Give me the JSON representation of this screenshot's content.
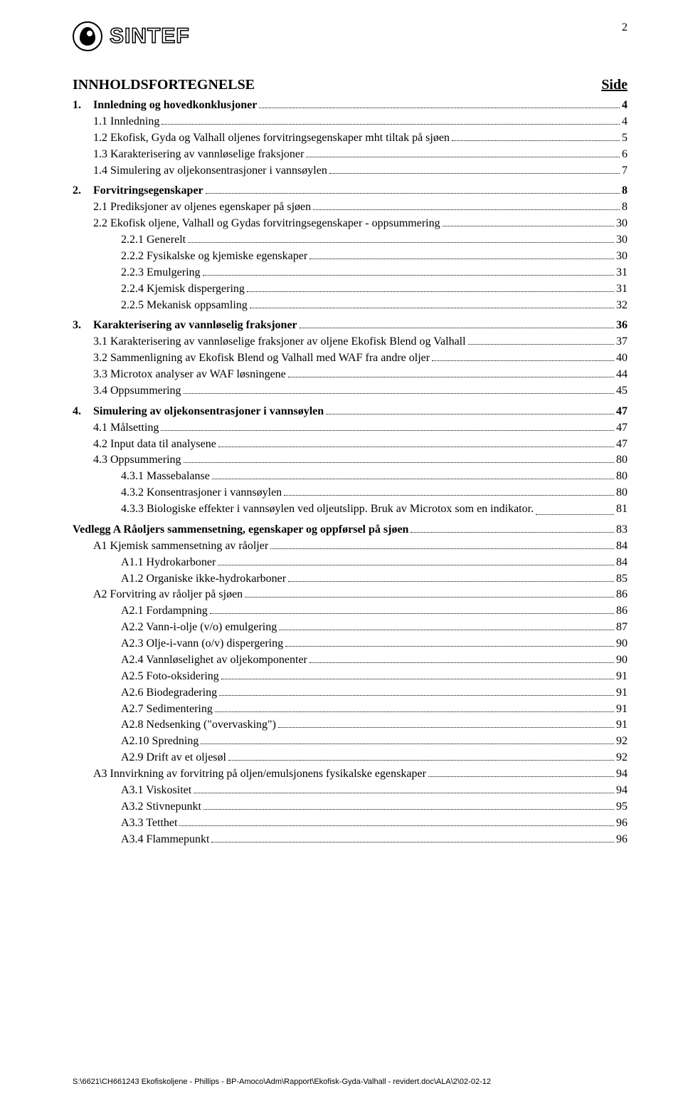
{
  "page_number": "2",
  "logo_text": "SINTEF",
  "doc_title": "INNHOLDSFORTEGNELSE",
  "side_label": "Side",
  "sections": [
    {
      "entries": [
        {
          "level": "l0",
          "num": "1.",
          "text": "Innledning og hovedkonklusjoner",
          "page": "4"
        },
        {
          "level": "l1",
          "text": "1.1  Innledning",
          "page": "4"
        },
        {
          "level": "l1",
          "text": "1.2  Ekofisk, Gyda og Valhall oljenes forvitringsegenskaper mht tiltak på sjøen",
          "page": "5"
        },
        {
          "level": "l1",
          "text": "1.3  Karakterisering av vannløselige fraksjoner",
          "page": "6"
        },
        {
          "level": "l1",
          "text": "1.4  Simulering av oljekonsentrasjoner i vannsøylen",
          "page": "7"
        }
      ]
    },
    {
      "entries": [
        {
          "level": "l0",
          "num": "2.",
          "text": "Forvitringsegenskaper",
          "page": "8"
        },
        {
          "level": "l1",
          "text": "2.1  Prediksjoner av oljenes egenskaper på sjøen",
          "page": "8"
        },
        {
          "level": "l1",
          "text": "2.2  Ekofisk oljene, Valhall og Gydas forvitringsegenskaper  - oppsummering",
          "page": "30"
        },
        {
          "level": "l2",
          "text": "2.2.1   Generelt",
          "page": "30"
        },
        {
          "level": "l2",
          "text": "2.2.2   Fysikalske og kjemiske egenskaper",
          "page": "30"
        },
        {
          "level": "l2",
          "text": "2.2.3   Emulgering",
          "page": "31"
        },
        {
          "level": "l2",
          "text": "2.2.4   Kjemisk dispergering",
          "page": "31"
        },
        {
          "level": "l2",
          "text": "2.2.5   Mekanisk oppsamling",
          "page": "32"
        }
      ]
    },
    {
      "entries": [
        {
          "level": "l0",
          "num": "3.",
          "text": "Karakterisering av vannløselig fraksjoner",
          "page": "36"
        },
        {
          "level": "l1",
          "text": "3.1  Karakterisering av vannløselige fraksjoner av oljene Ekofisk Blend og Valhall",
          "page": "37"
        },
        {
          "level": "l1",
          "text": "3.2  Sammenligning av  Ekofisk Blend og Valhall med WAF fra andre oljer",
          "page": "40"
        },
        {
          "level": "l1",
          "text": "3.3  Microtox analyser av WAF løsningene",
          "page": "44"
        },
        {
          "level": "l1",
          "text": "3.4  Oppsummering",
          "page": "45"
        }
      ]
    },
    {
      "entries": [
        {
          "level": "l0",
          "num": "4.",
          "text": "Simulering av oljekonsentrasjoner i vannsøylen",
          "page": "47"
        },
        {
          "level": "l1",
          "text": "4.1  Målsetting",
          "page": "47"
        },
        {
          "level": "l1",
          "text": "4.2  Input data til analysene",
          "page": "47"
        },
        {
          "level": "l1",
          "text": "4.3  Oppsummering",
          "page": "80"
        },
        {
          "level": "l2",
          "text": "4.3.1   Massebalanse",
          "page": "80"
        },
        {
          "level": "l2",
          "text": "4.3.2   Konsentrasjoner i vannsøylen",
          "page": "80"
        },
        {
          "level": "l1wrap",
          "text": "4.3.3   Biologiske effekter i vannsøylen ved oljeutslipp. Bruk av Microtox som en indikator.",
          "page": "81"
        }
      ]
    },
    {
      "entries": [
        {
          "level": "l0nonum",
          "text": "Vedlegg A Råoljers sammensetning, egenskaper og oppførsel på sjøen",
          "page": "83"
        },
        {
          "level": "l1",
          "text": "A1  Kjemisk sammensetning av råoljer",
          "page": "84"
        },
        {
          "level": "l2",
          "text": "A1.1    Hydrokarboner",
          "page": "84"
        },
        {
          "level": "l2",
          "text": "A1.2   Organiske ikke-hydrokarboner",
          "page": "85"
        },
        {
          "level": "l1",
          "text": "A2  Forvitring av råoljer på sjøen",
          "page": "86"
        },
        {
          "level": "l2",
          "text": "A2.1    Fordampning",
          "page": "86"
        },
        {
          "level": "l2",
          "text": "A2.2   Vann-i-olje (v/o) emulgering",
          "page": "87"
        },
        {
          "level": "l2",
          "text": "A2.3   Olje-i-vann (o/v) dispergering",
          "page": "90"
        },
        {
          "level": "l2",
          "text": "A2.4   Vannløselighet av oljekomponenter",
          "page": "90"
        },
        {
          "level": "l2",
          "text": "A2.5    Foto-oksidering",
          "page": "91"
        },
        {
          "level": "l2",
          "text": "A2.6   Biodegradering",
          "page": "91"
        },
        {
          "level": "l2",
          "text": "A2.7   Sedimentering",
          "page": "91"
        },
        {
          "level": "l2",
          "text": "A2.8   Nedsenking (\"overvasking\")",
          "page": "91"
        },
        {
          "level": "l2",
          "text": "A2.10 Spredning",
          "page": "92"
        },
        {
          "level": "l2",
          "text": "A2.9    Drift av et oljesøl",
          "page": "92"
        },
        {
          "level": "l1",
          "text": "A3    Innvirkning av forvitring på oljen/emulsjonens fysikalske egenskaper",
          "page": "94"
        },
        {
          "level": "l2",
          "text": "A3.1    Viskositet",
          "page": "94"
        },
        {
          "level": "l2",
          "text": "A3.2    Stivnepunkt",
          "page": "95"
        },
        {
          "level": "l2",
          "text": "A3.3   Tetthet",
          "page": "96"
        },
        {
          "level": "l2",
          "text": "A3.4   Flammepunkt",
          "page": "96"
        }
      ]
    }
  ],
  "footer_text": "S:\\6621\\CH661243 Ekofiskoljene - Phillips - BP-Amoco\\Adm\\Rapport\\Ekofisk-Gyda-Valhall - revidert.doc\\ALA\\2\\02-02-12"
}
